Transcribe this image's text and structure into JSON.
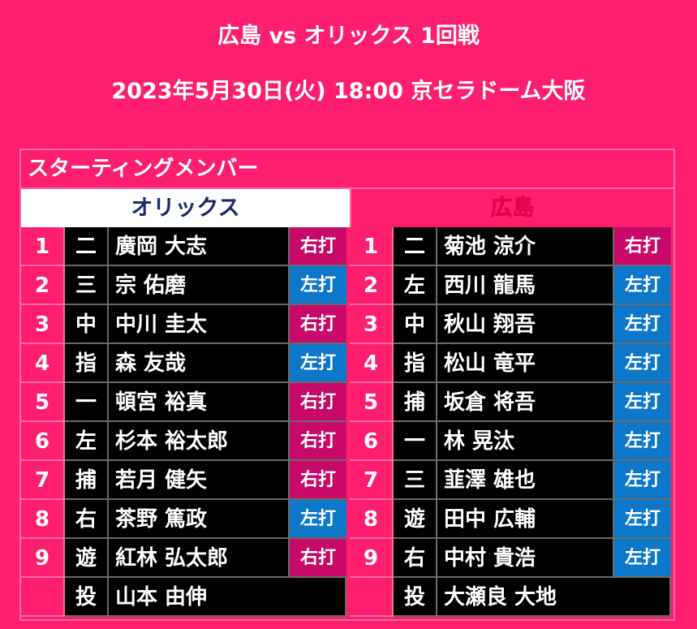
{
  "header": {
    "matchup": "広島 vs オリックス 1回戦",
    "date_venue": "2023年5月30日(火) 18:00 京セラドーム大阪"
  },
  "panel_title": "スターティングメンバー",
  "teams": [
    {
      "name": "オリックス",
      "lineup": [
        {
          "order": "1",
          "pos": "二",
          "player": "廣岡 大志",
          "bat": "右打"
        },
        {
          "order": "2",
          "pos": "三",
          "player": "宗 佑磨",
          "bat": "左打"
        },
        {
          "order": "3",
          "pos": "中",
          "player": "中川 圭太",
          "bat": "右打"
        },
        {
          "order": "4",
          "pos": "指",
          "player": "森 友哉",
          "bat": "左打"
        },
        {
          "order": "5",
          "pos": "一",
          "player": "頓宮 裕真",
          "bat": "右打"
        },
        {
          "order": "6",
          "pos": "左",
          "player": "杉本 裕太郎",
          "bat": "右打"
        },
        {
          "order": "7",
          "pos": "捕",
          "player": "若月 健矢",
          "bat": "右打"
        },
        {
          "order": "8",
          "pos": "右",
          "player": "茶野 篤政",
          "bat": "左打"
        },
        {
          "order": "9",
          "pos": "遊",
          "player": "紅林 弘太郎",
          "bat": "右打"
        }
      ],
      "pitcher": {
        "pos": "投",
        "player": "山本 由伸"
      }
    },
    {
      "name": "広島",
      "lineup": [
        {
          "order": "1",
          "pos": "二",
          "player": "菊池 涼介",
          "bat": "右打"
        },
        {
          "order": "2",
          "pos": "左",
          "player": "西川 龍馬",
          "bat": "左打"
        },
        {
          "order": "3",
          "pos": "中",
          "player": "秋山 翔吾",
          "bat": "左打"
        },
        {
          "order": "4",
          "pos": "指",
          "player": "松山 竜平",
          "bat": "左打"
        },
        {
          "order": "5",
          "pos": "捕",
          "player": "坂倉 将吾",
          "bat": "左打"
        },
        {
          "order": "6",
          "pos": "一",
          "player": "林 晃汰",
          "bat": "左打"
        },
        {
          "order": "7",
          "pos": "三",
          "player": "韮澤 雄也",
          "bat": "左打"
        },
        {
          "order": "8",
          "pos": "遊",
          "player": "田中 広輔",
          "bat": "左打"
        },
        {
          "order": "9",
          "pos": "右",
          "player": "中村 貴浩",
          "bat": "左打"
        }
      ],
      "pitcher": {
        "pos": "投",
        "player": "大瀬良 大地"
      }
    }
  ],
  "colors": {
    "background": "#fd1f6d",
    "right_bat": "#c7096a",
    "left_bat": "#0d77c9",
    "row": "#000000"
  }
}
